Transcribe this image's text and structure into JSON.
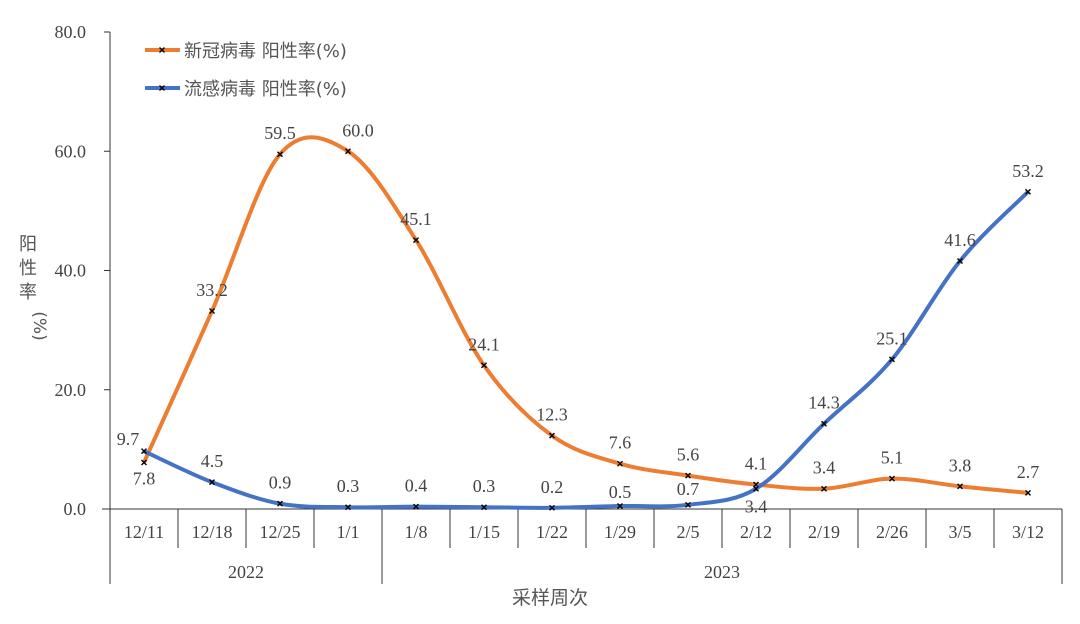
{
  "chart_data": {
    "type": "line",
    "title": "",
    "xlabel": "采样周次",
    "ylabel": "阳性率(%)",
    "ylim": [
      0,
      80
    ],
    "yticks": [
      "0.0",
      "20.0",
      "40.0",
      "60.0",
      "80.0"
    ],
    "categories": [
      "12/11",
      "12/18",
      "12/25",
      "1/1",
      "1/8",
      "1/15",
      "1/22",
      "1/29",
      "2/5",
      "2/12",
      "2/19",
      "2/26",
      "3/5",
      "3/12"
    ],
    "year_groups": [
      {
        "label": "2022",
        "span": 4
      },
      {
        "label": "2023",
        "span": 10
      }
    ],
    "legend_position": "top-left",
    "grid": false,
    "smooth": true,
    "series": [
      {
        "name": "新冠病毒 阳性率(%)",
        "color": "#ED7D31",
        "values": [
          7.8,
          33.2,
          59.5,
          60.0,
          45.1,
          24.1,
          12.3,
          7.6,
          5.6,
          4.1,
          3.4,
          5.1,
          3.8,
          2.7
        ],
        "labels": [
          "7.8",
          "33.2",
          "59.5",
          "60.0",
          "45.1",
          "24.1",
          "12.3",
          "7.6",
          "5.6",
          "4.1",
          "3.4",
          "5.1",
          "3.8",
          "2.7"
        ]
      },
      {
        "name": "流感病毒 阳性率(%)",
        "color": "#4472C4",
        "values": [
          9.7,
          4.5,
          0.9,
          0.3,
          0.4,
          0.3,
          0.2,
          0.5,
          0.7,
          3.4,
          14.3,
          25.1,
          41.6,
          53.2
        ],
        "labels": [
          "9.7",
          "4.5",
          "0.9",
          "0.3",
          "0.4",
          "0.3",
          "0.2",
          "0.5",
          "0.7",
          "3.4",
          "14.3",
          "25.1",
          "41.6",
          "53.2"
        ]
      }
    ]
  }
}
